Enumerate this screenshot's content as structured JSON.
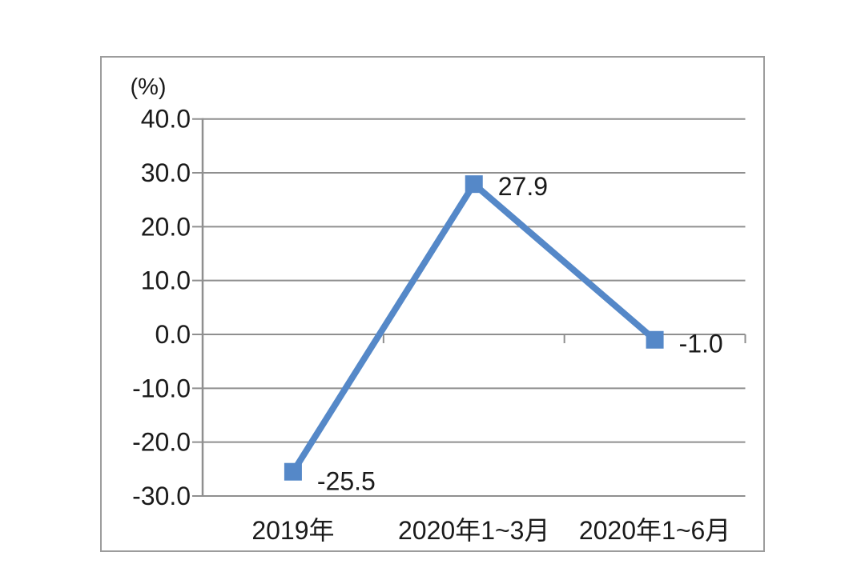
{
  "chart_data": {
    "type": "line",
    "unit_label": "(%)",
    "categories": [
      "2019年",
      "2020年1~3月",
      "2020年1~6月"
    ],
    "values": [
      -25.5,
      27.9,
      -1.0
    ],
    "data_labels": [
      "-25.5",
      "27.9",
      "-1.0"
    ],
    "yticks": [
      40,
      30,
      20,
      10,
      0,
      -10,
      -20,
      -30
    ],
    "ytick_labels": [
      "40.0",
      "30.0",
      "20.0",
      "10.0",
      "0.0",
      "-10.0",
      "-20.0",
      "-30.0"
    ],
    "ylim": [
      -30,
      40
    ],
    "grid": true,
    "legend": "none",
    "marker": "square",
    "colors": {
      "line": "#5588c8",
      "marker": "#5588c8",
      "gridline": "#8f8f8f",
      "axis": "#8f8f8f",
      "frame_border": "#9c9c9c",
      "text": "#1a1a1a",
      "background": "#ffffff"
    }
  }
}
